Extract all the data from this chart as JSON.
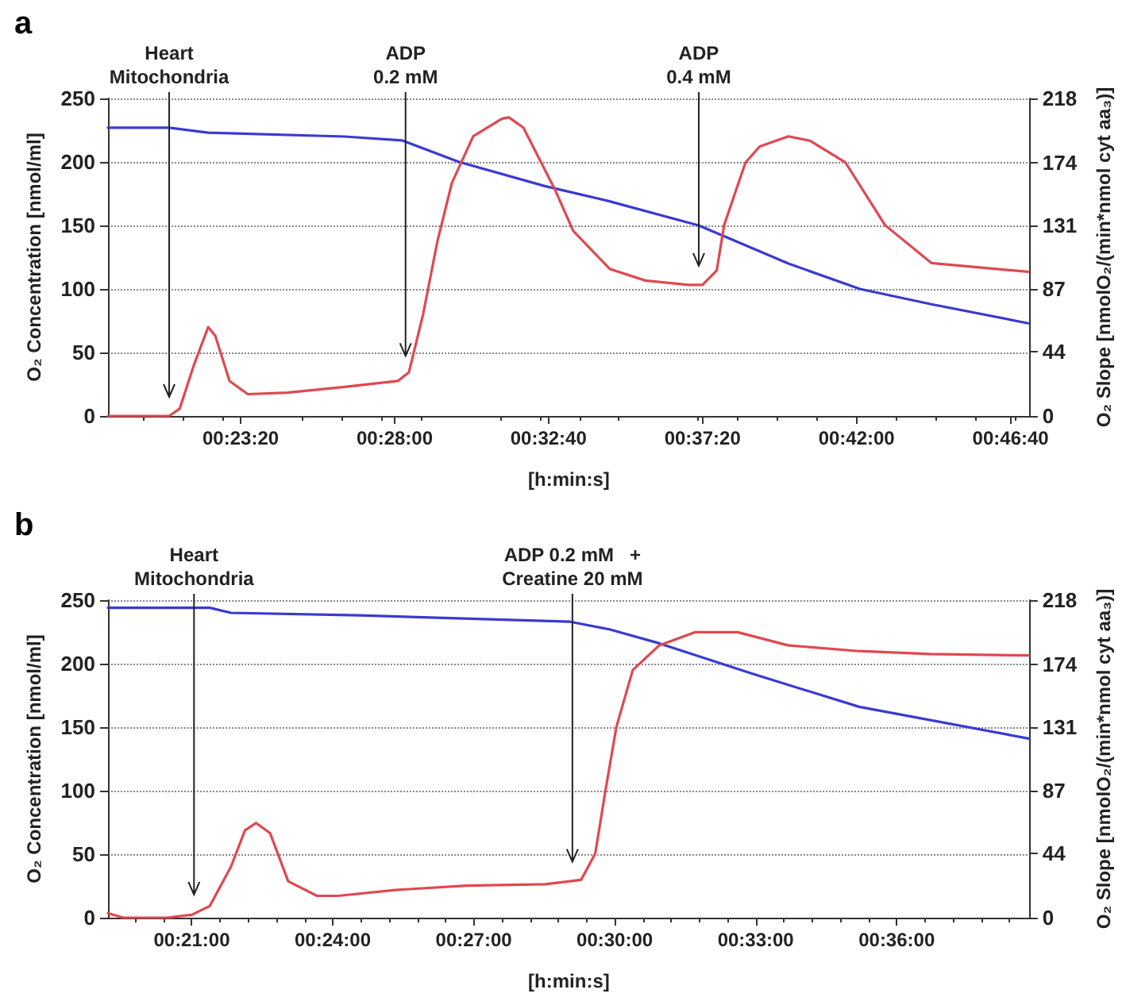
{
  "chart_data": [
    {
      "type": "line",
      "title": "a",
      "xlabel": "[h:min:s]",
      "ylabel": "O₂ Concentration [nmol/ml]",
      "y2label": "O₂ Slope [nmolO₂/(min*nmol cyt aa₃)]",
      "xlim": [
        0.3219,
        0.7875
      ],
      "xticks": [
        {
          "value": 0.3889,
          "label": "00:23:20"
        },
        {
          "value": 0.4667,
          "label": "00:28:00"
        },
        {
          "value": 0.5444,
          "label": "00:32:40"
        },
        {
          "value": 0.6222,
          "label": "00:37:20"
        },
        {
          "value": 0.7,
          "label": "00:42:00"
        },
        {
          "value": 0.7778,
          "label": "00:46:40"
        }
      ],
      "ylim": [
        0,
        250
      ],
      "yticks": [
        0,
        50,
        100,
        150,
        200,
        250
      ],
      "y2lim": [
        0,
        218
      ],
      "y2ticks": [
        0,
        44,
        87,
        131,
        174,
        218
      ],
      "grid": "y",
      "marker": "none",
      "line_style": "solid",
      "series": [
        {
          "color": "#3a3ad0",
          "x": [
            0.3219,
            0.3528,
            0.3725,
            0.4414,
            0.4703,
            0.4992,
            0.5425,
            0.5753,
            0.6203,
            0.6656,
            0.7017,
            0.7378,
            0.7867
          ],
          "values": [
            227,
            227,
            223,
            220,
            217,
            200,
            181,
            169,
            150,
            120,
            100,
            88,
            73
          ]
        },
        {
          "color": "#e04850",
          "axis": "y2",
          "x": [
            0.3219,
            0.3528,
            0.3581,
            0.3653,
            0.3725,
            0.3761,
            0.3833,
            0.3925,
            0.4125,
            0.4414,
            0.4683,
            0.4739,
            0.4811,
            0.4883,
            0.4956,
            0.5064,
            0.5208,
            0.5244,
            0.5317,
            0.5478,
            0.5569,
            0.5753,
            0.5933,
            0.615,
            0.6222,
            0.6294,
            0.6331,
            0.6439,
            0.6511,
            0.6656,
            0.6764,
            0.6944,
            0.7144,
            0.7378,
            0.7867
          ],
          "values": [
            0,
            0,
            5,
            35,
            61,
            55,
            24,
            15,
            16,
            20,
            24,
            30,
            70,
            120,
            160,
            192,
            204,
            205,
            198,
            155,
            127,
            101,
            93,
            90,
            90,
            100,
            131,
            174,
            185,
            192,
            189,
            174,
            131,
            105,
            99
          ]
        }
      ],
      "ref_lines": [
        {
          "axis": "x",
          "value": 0.3528,
          "label": "Heart\nMitochondria"
        },
        {
          "axis": "x",
          "value": 0.4722,
          "label": "ADP\n0.2 mM"
        },
        {
          "axis": "x",
          "value": 0.6203,
          "label": "ADP\n0.4 mM"
        }
      ]
    },
    {
      "type": "line",
      "title": "b",
      "xlabel": "[h:min:s]",
      "ylabel": "O₂ Concentration [nmol/ml]",
      "y2label": "O₂ Slope [nmolO₂/(min*nmol cyt aa₃)]",
      "xlim": [
        0.3203,
        0.6472
      ],
      "xticks": [
        {
          "value": 0.35,
          "label": "00:21:00"
        },
        {
          "value": 0.4,
          "label": "00:24:00"
        },
        {
          "value": 0.45,
          "label": "00:27:00"
        },
        {
          "value": 0.5,
          "label": "00:30:00"
        },
        {
          "value": 0.55,
          "label": "00:33:00"
        },
        {
          "value": 0.6,
          "label": "00:36:00"
        }
      ],
      "ylim": [
        0,
        250
      ],
      "yticks": [
        0,
        50,
        100,
        150,
        200,
        250
      ],
      "y2lim": [
        0,
        218
      ],
      "y2ticks": [
        0,
        44,
        87,
        131,
        174,
        218
      ],
      "grid": "y",
      "marker": "none",
      "line_style": "solid",
      "series": [
        {
          "color": "#3a3ad0",
          "x": [
            0.3203,
            0.3564,
            0.3639,
            0.4094,
            0.4842,
            0.4981,
            0.5158,
            0.5489,
            0.5867,
            0.6469
          ],
          "values": [
            244,
            244,
            240,
            238,
            233,
            227,
            216,
            192,
            166,
            141
          ]
        },
        {
          "color": "#e04850",
          "axis": "y2",
          "x": [
            0.3203,
            0.3258,
            0.3411,
            0.35,
            0.3564,
            0.3639,
            0.3689,
            0.3728,
            0.3778,
            0.3842,
            0.3944,
            0.4019,
            0.4222,
            0.4475,
            0.4753,
            0.4881,
            0.4931,
            0.4967,
            0.5006,
            0.5064,
            0.5158,
            0.5286,
            0.5436,
            0.5614,
            0.5867,
            0.6119,
            0.6469
          ],
          "values": [
            3,
            0,
            0,
            2,
            8,
            35,
            60,
            65,
            58,
            25,
            15,
            15,
            19,
            22,
            23,
            26,
            44,
            87,
            131,
            170,
            187,
            196,
            196,
            187,
            183,
            181,
            180
          ]
        }
      ],
      "ref_lines": [
        {
          "axis": "x",
          "value": 0.3508,
          "label": "Heart\nMitochondria"
        },
        {
          "axis": "x",
          "value": 0.485,
          "label": "ADP 0.2 mM   +\nCreatine 20 mM"
        }
      ]
    }
  ]
}
